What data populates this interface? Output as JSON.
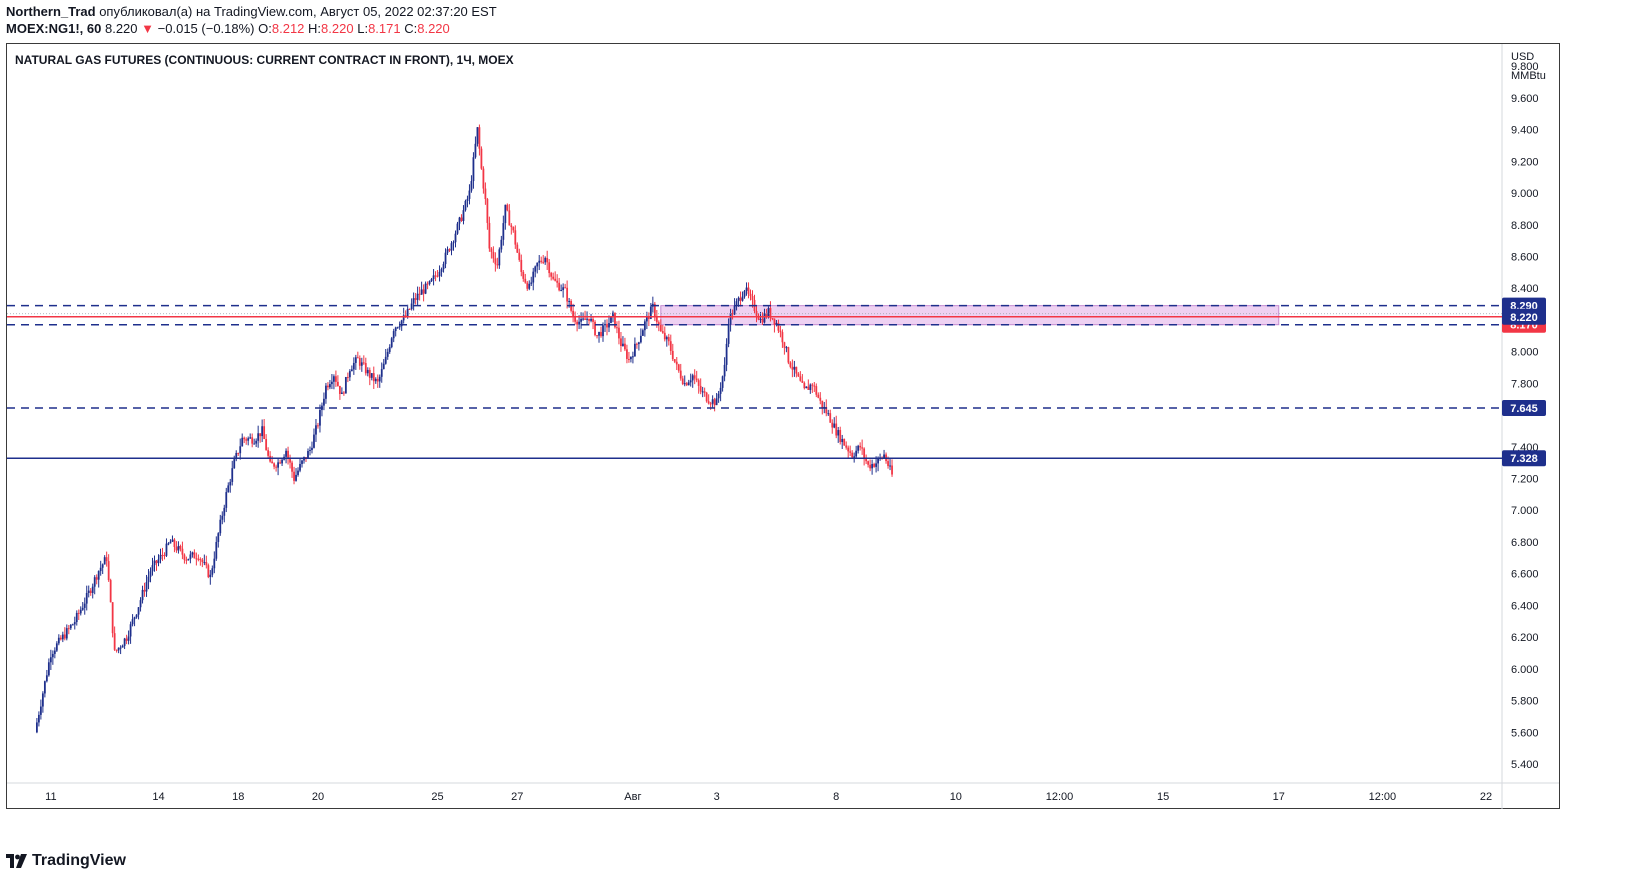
{
  "header": {
    "author": "Northern_Trad",
    "published_text": "опубликовал(а) на TradingView.com,",
    "date": "Август 05, 2022 02:37:20 EST",
    "symbol": "MOEX:NG1!, 60",
    "price": "8.220",
    "change_arrow": "▼",
    "change": "−0.015 (−0.18%)",
    "o_label": "O:",
    "o": "8.212",
    "h_label": "H:",
    "h": "8.220",
    "l_label": "L:",
    "l": "8.171",
    "c_label": "C:",
    "c": "8.220"
  },
  "footer": {
    "brand": "TradingView"
  },
  "colors": {
    "up": "#1e2f8c",
    "down": "#f23645",
    "zone": "#e8c2ee",
    "zone_border": "#c48ad0"
  },
  "chart_data": {
    "type": "candlestick",
    "title": "NATURAL GAS FUTURES (CONTINUOUS: CURRENT CONTRACT IN FRONT), 1Ч, MOEX",
    "currency": "USD",
    "unit": "MMBtu",
    "y_ticks": [
      "9.800",
      "9.600",
      "9.400",
      "9.200",
      "9.000",
      "8.800",
      "8.600",
      "8.400",
      "8.000",
      "7.800",
      "7.400",
      "7.200",
      "7.000",
      "6.800",
      "6.600",
      "6.400",
      "6.200",
      "6.000",
      "5.800",
      "5.600",
      "5.400"
    ],
    "ylim": [
      5.28,
      9.94
    ],
    "x_ticks": [
      {
        "label": "11",
        "t": 4
      },
      {
        "label": "14",
        "t": 31
      },
      {
        "label": "18",
        "t": 51
      },
      {
        "label": "20",
        "t": 71
      },
      {
        "label": "25",
        "t": 101
      },
      {
        "label": "27",
        "t": 121
      },
      {
        "label": "Авг",
        "t": 150
      },
      {
        "label": "3",
        "t": 171
      },
      {
        "label": "8",
        "t": 201
      },
      {
        "label": "10",
        "t": 231
      },
      {
        "label": "12:00",
        "t": 257
      },
      {
        "label": "15",
        "t": 283
      },
      {
        "label": "17",
        "t": 312
      },
      {
        "label": "12:00",
        "t": 338
      },
      {
        "label": "22",
        "t": 364
      }
    ],
    "t_range": [
      -7,
      368
    ],
    "price_path": [
      [
        0,
        5.6
      ],
      [
        2,
        5.85
      ],
      [
        4,
        6.1
      ],
      [
        7,
        6.2
      ],
      [
        10,
        6.3
      ],
      [
        13,
        6.45
      ],
      [
        16,
        6.62
      ],
      [
        18,
        6.7
      ],
      [
        20,
        6.1
      ],
      [
        23,
        6.2
      ],
      [
        26,
        6.4
      ],
      [
        29,
        6.62
      ],
      [
        32,
        6.72
      ],
      [
        34,
        6.8
      ],
      [
        36,
        6.75
      ],
      [
        38,
        6.7
      ],
      [
        41,
        6.72
      ],
      [
        44,
        6.58
      ],
      [
        46,
        6.85
      ],
      [
        48,
        7.1
      ],
      [
        50,
        7.3
      ],
      [
        52,
        7.45
      ],
      [
        55,
        7.45
      ],
      [
        57,
        7.5
      ],
      [
        59,
        7.28
      ],
      [
        61,
        7.3
      ],
      [
        63,
        7.38
      ],
      [
        65,
        7.2
      ],
      [
        67,
        7.3
      ],
      [
        69,
        7.38
      ],
      [
        71,
        7.55
      ],
      [
        73,
        7.78
      ],
      [
        75,
        7.86
      ],
      [
        77,
        7.72
      ],
      [
        79,
        7.9
      ],
      [
        81,
        7.95
      ],
      [
        84,
        7.85
      ],
      [
        86,
        7.8
      ],
      [
        88,
        7.95
      ],
      [
        90,
        8.15
      ],
      [
        93,
        8.22
      ],
      [
        95,
        8.32
      ],
      [
        97,
        8.38
      ],
      [
        99,
        8.42
      ],
      [
        101,
        8.5
      ],
      [
        103,
        8.6
      ],
      [
        105,
        8.72
      ],
      [
        107,
        8.85
      ],
      [
        109,
        9.0
      ],
      [
        110,
        9.2
      ],
      [
        111,
        9.4
      ],
      [
        112,
        9.15
      ],
      [
        113,
        8.95
      ],
      [
        114,
        8.65
      ],
      [
        116,
        8.55
      ],
      [
        118,
        8.9
      ],
      [
        120,
        8.75
      ],
      [
        122,
        8.5
      ],
      [
        124,
        8.4
      ],
      [
        126,
        8.55
      ],
      [
        128,
        8.6
      ],
      [
        130,
        8.45
      ],
      [
        133,
        8.38
      ],
      [
        135,
        8.22
      ],
      [
        137,
        8.18
      ],
      [
        139,
        8.22
      ],
      [
        141,
        8.1
      ],
      [
        143,
        8.15
      ],
      [
        145,
        8.22
      ],
      [
        147,
        8.05
      ],
      [
        149,
        7.95
      ],
      [
        151,
        8.05
      ],
      [
        153,
        8.18
      ],
      [
        155,
        8.28
      ],
      [
        157,
        8.12
      ],
      [
        159,
        8.05
      ],
      [
        161,
        7.9
      ],
      [
        163,
        7.8
      ],
      [
        165,
        7.85
      ],
      [
        167,
        7.75
      ],
      [
        169,
        7.7
      ],
      [
        171,
        7.68
      ],
      [
        173,
        7.9
      ],
      [
        174,
        8.2
      ],
      [
        176,
        8.3
      ],
      [
        178,
        8.4
      ],
      [
        180,
        8.3
      ],
      [
        182,
        8.2
      ],
      [
        184,
        8.25
      ],
      [
        186,
        8.18
      ],
      [
        188,
        8.05
      ],
      [
        189,
        7.95
      ],
      [
        191,
        7.85
      ],
      [
        193,
        7.75
      ],
      [
        195,
        7.8
      ],
      [
        197,
        7.68
      ],
      [
        199,
        7.6
      ],
      [
        201,
        7.5
      ],
      [
        203,
        7.42
      ],
      [
        205,
        7.35
      ],
      [
        207,
        7.4
      ],
      [
        209,
        7.28
      ],
      [
        211,
        7.3
      ],
      [
        213,
        7.35
      ],
      [
        215,
        7.22
      ]
    ],
    "levels": [
      {
        "label": "8.290",
        "price": 8.29,
        "style": "dashed"
      },
      {
        "label": "8.220",
        "price": 8.22,
        "style": "current"
      },
      {
        "label": "8.170",
        "price": 8.17,
        "style": "dashed"
      },
      {
        "label": "7.645",
        "price": 7.645,
        "style": "dashed"
      },
      {
        "label": "7.328",
        "price": 7.328,
        "style": "solid"
      }
    ],
    "zone": {
      "t_start": 157,
      "t_end": 312,
      "top": 8.29,
      "bottom": 8.17
    }
  }
}
